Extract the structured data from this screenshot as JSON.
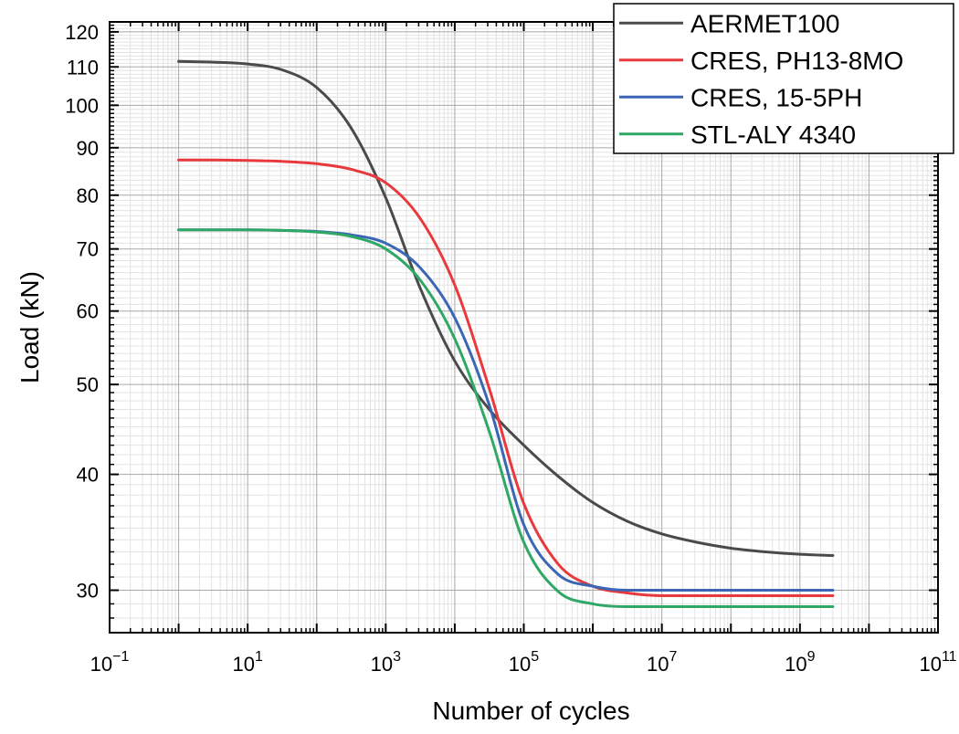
{
  "chart_data": {
    "type": "line",
    "title": "",
    "xlabel": "Number of cycles",
    "ylabel": "Load (kN)",
    "x_scale": "log",
    "y_scale": "log",
    "xlim": [
      0.1,
      100000000000
    ],
    "ylim": [
      27,
      123
    ],
    "grid": true,
    "legend_position": "top-right",
    "x_ticks": [
      {
        "value": 0.1,
        "base": "10",
        "exp": "−1"
      },
      {
        "value": 10,
        "base": "10",
        "exp": "1"
      },
      {
        "value": 1000,
        "base": "10",
        "exp": "3"
      },
      {
        "value": 100000,
        "base": "10",
        "exp": "5"
      },
      {
        "value": 10000000,
        "base": "10",
        "exp": "7"
      },
      {
        "value": 1000000000,
        "base": "10",
        "exp": "9"
      },
      {
        "value": 100000000000,
        "base": "10",
        "exp": "11"
      }
    ],
    "y_ticks": [
      {
        "value": 30,
        "label": "30"
      },
      {
        "value": 40,
        "label": "40"
      },
      {
        "value": 50,
        "label": "50"
      },
      {
        "value": 60,
        "label": "60"
      },
      {
        "value": 70,
        "label": "70"
      },
      {
        "value": 80,
        "label": "80"
      },
      {
        "value": 90,
        "label": "90"
      },
      {
        "value": 100,
        "label": "100"
      },
      {
        "value": 110,
        "label": "110"
      },
      {
        "value": 120,
        "label": "120"
      }
    ],
    "x": [
      1,
      3.16,
      10,
      31.6,
      100,
      316,
      1000,
      3160,
      10000,
      31600,
      100000,
      316000,
      1000000,
      3160000,
      10000000,
      31600000,
      100000000,
      316000000,
      1000000000,
      3000000000
    ],
    "series": [
      {
        "name": "AERMET100",
        "color": "#4a4a4a",
        "values": [
          111.5,
          111.3,
          110.8,
          109.2,
          104.5,
          94.5,
          79.5,
          63.5,
          53.0,
          47.0,
          43.0,
          39.8,
          37.3,
          35.6,
          34.5,
          33.8,
          33.3,
          33.0,
          32.8,
          32.7
        ]
      },
      {
        "name": "CRES, PH13-8MO",
        "color": "#e8393d",
        "values": [
          87.3,
          87.3,
          87.2,
          87.0,
          86.5,
          85.3,
          82.5,
          75.5,
          64.0,
          49.5,
          37.2,
          32.0,
          30.3,
          29.8,
          29.6,
          29.6,
          29.6,
          29.6,
          29.6,
          29.6
        ]
      },
      {
        "name": "CRES, 15-5PH",
        "color": "#3a66b5",
        "values": [
          73.4,
          73.4,
          73.4,
          73.3,
          73.1,
          72.5,
          71.0,
          66.8,
          59.0,
          47.5,
          35.3,
          31.2,
          30.3,
          30.0,
          30.0,
          30.0,
          30.0,
          30.0,
          30.0,
          30.0
        ]
      },
      {
        "name": "STL-ALY 4340",
        "color": "#2fa866",
        "values": [
          73.4,
          73.4,
          73.4,
          73.3,
          73.0,
          72.2,
          70.0,
          64.8,
          56.0,
          44.5,
          33.8,
          29.9,
          29.0,
          28.8,
          28.8,
          28.8,
          28.8,
          28.8,
          28.8,
          28.8
        ]
      }
    ]
  }
}
